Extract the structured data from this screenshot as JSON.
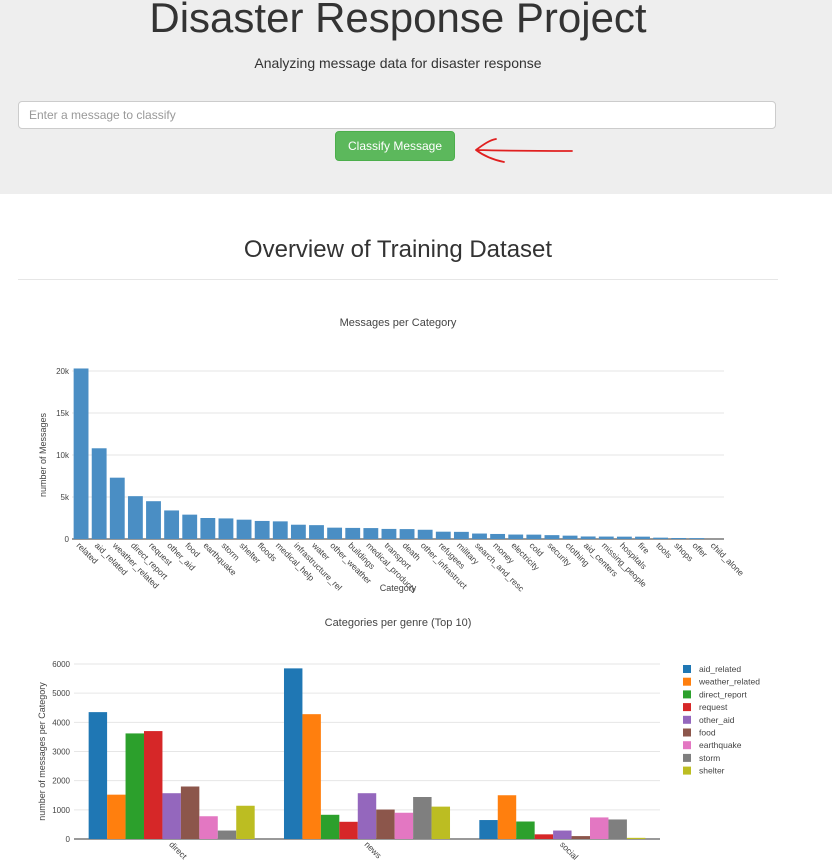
{
  "header": {
    "title": "Disaster Response Project",
    "subtitle": "Analyzing message data for disaster response",
    "input_placeholder": "Enter a message to classify",
    "button_label": "Classify Message"
  },
  "overview_title": "Overview of Training Dataset",
  "colors": {
    "bar1": "#4a8ec4",
    "button": "#5cb85c",
    "annotation": "#e02020"
  },
  "chart_data": [
    {
      "type": "bar",
      "title": "Messages per Category",
      "xlabel": "Category",
      "ylabel": "number of Messages",
      "ylim": [
        0,
        20000
      ],
      "yticks": [
        0,
        5000,
        10000,
        15000,
        20000
      ],
      "ytick_labels": [
        "0",
        "5k",
        "10k",
        "15k",
        "20k"
      ],
      "grid": true,
      "categories": [
        "related",
        "aid_related",
        "weather_related",
        "direct_report",
        "request",
        "other_aid",
        "food",
        "earthquake",
        "storm",
        "shelter",
        "floods",
        "medical_help",
        "infrastructure_rel",
        "water",
        "other_weather",
        "buildings",
        "medical_products",
        "transport",
        "death",
        "other_infrastruct",
        "refugees",
        "military",
        "search_and_resc",
        "money",
        "electricity",
        "cold",
        "security",
        "clothing",
        "aid_centers",
        "missing_people",
        "hospitals",
        "fire",
        "tools",
        "shops",
        "offer",
        "child_alone"
      ],
      "values": [
        20300,
        10800,
        7300,
        5100,
        4500,
        3400,
        2900,
        2500,
        2450,
        2300,
        2150,
        2100,
        1700,
        1650,
        1350,
        1320,
        1300,
        1200,
        1180,
        1100,
        870,
        850,
        650,
        600,
        530,
        520,
        460,
        400,
        300,
        290,
        280,
        280,
        160,
        120,
        110,
        0
      ]
    },
    {
      "type": "bar",
      "title": "Categories per genre (Top 10)",
      "xlabel": "",
      "ylabel": "number of messages per Category",
      "ylim": [
        0,
        6000
      ],
      "yticks": [
        0,
        1000,
        2000,
        3000,
        4000,
        5000,
        6000
      ],
      "ytick_labels": [
        "0",
        "1000",
        "2000",
        "3000",
        "4000",
        "5000",
        "6000"
      ],
      "grid": true,
      "legend_position": "right",
      "categories": [
        "direct",
        "news",
        "social"
      ],
      "series": [
        {
          "name": "aid_related",
          "color": "#1f77b4",
          "values": [
            4350,
            5850,
            650
          ]
        },
        {
          "name": "weather_related",
          "color": "#ff7f0e",
          "values": [
            1520,
            4280,
            1500
          ]
        },
        {
          "name": "direct_report",
          "color": "#2ca02c",
          "values": [
            3620,
            830,
            600
          ]
        },
        {
          "name": "request",
          "color": "#d62728",
          "values": [
            3700,
            590,
            160
          ]
        },
        {
          "name": "other_aid",
          "color": "#9467bd",
          "values": [
            1570,
            1570,
            290
          ]
        },
        {
          "name": "food",
          "color": "#8c564b",
          "values": [
            1800,
            1010,
            100
          ]
        },
        {
          "name": "earthquake",
          "color": "#e377c2",
          "values": [
            780,
            900,
            740
          ]
        },
        {
          "name": "storm",
          "color": "#7f7f7f",
          "values": [
            290,
            1440,
            670
          ]
        },
        {
          "name": "shelter",
          "color": "#bcbd22",
          "values": [
            1140,
            1110,
            40
          ]
        }
      ]
    }
  ]
}
